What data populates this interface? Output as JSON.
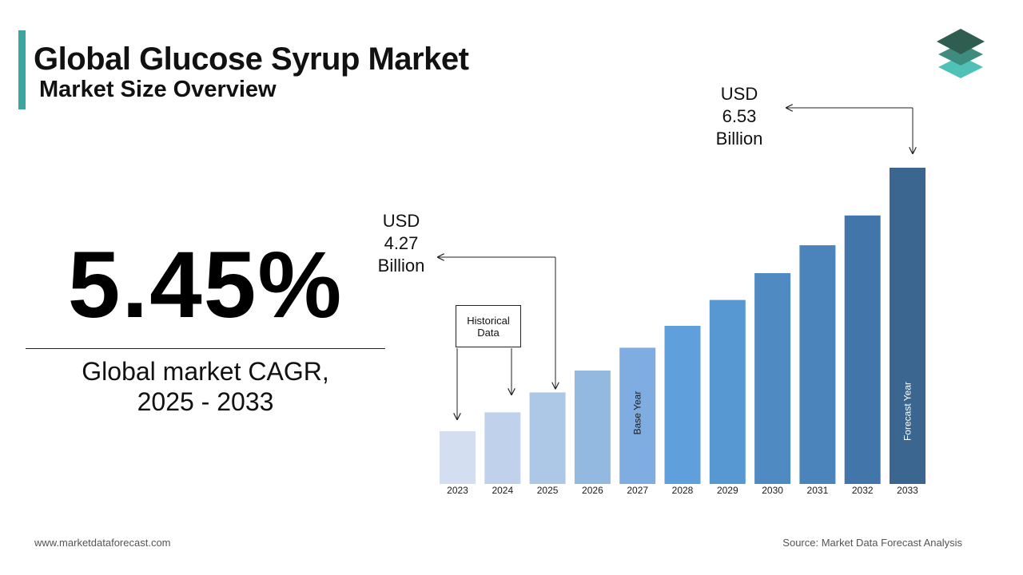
{
  "header": {
    "title": "Global Glucose Syrup Market",
    "subtitle": "Market Size Overview"
  },
  "highlight": {
    "cagr_value": "5.45%",
    "label_line1": "Global market CAGR,",
    "label_line2": "2025 - 2033"
  },
  "callouts": {
    "start": {
      "line1": "USD",
      "line2": "4.27",
      "line3": "Billion"
    },
    "end": {
      "line1": "USD",
      "line2": "6.53",
      "line3": "Billion"
    }
  },
  "historical_box": {
    "line1": "Historical",
    "line2": "Data"
  },
  "chart_data": {
    "type": "bar",
    "categories": [
      "2023",
      "2024",
      "2025",
      "2026",
      "2027",
      "2028",
      "2029",
      "2030",
      "2031",
      "2032",
      "2033"
    ],
    "values": [
      3.88,
      4.07,
      4.27,
      4.49,
      4.72,
      4.94,
      5.2,
      5.47,
      5.75,
      6.05,
      6.53
    ],
    "bar_labels": {
      "2027": "Base Year",
      "2033": "Forecast Year"
    },
    "colors": [
      "#d3dff0",
      "#c0d2eb",
      "#adc7e6",
      "#94b9e1",
      "#7fade2",
      "#5f9fdc",
      "#5898d2",
      "#4f8ac2",
      "#4a84ba",
      "#4276aa",
      "#3a6690"
    ],
    "label_color": "#1a1a1a",
    "title": "",
    "xlabel": "",
    "ylabel": "",
    "grid": false,
    "legend": "none"
  },
  "footer": {
    "website": "www.marketdataforecast.com",
    "source": "Source: Market Data Forecast Analysis"
  },
  "theme": {
    "accent": "#3aa6a0",
    "logo_colors": [
      "#2f5d50",
      "#3e8c7f",
      "#4fc1b6"
    ]
  }
}
